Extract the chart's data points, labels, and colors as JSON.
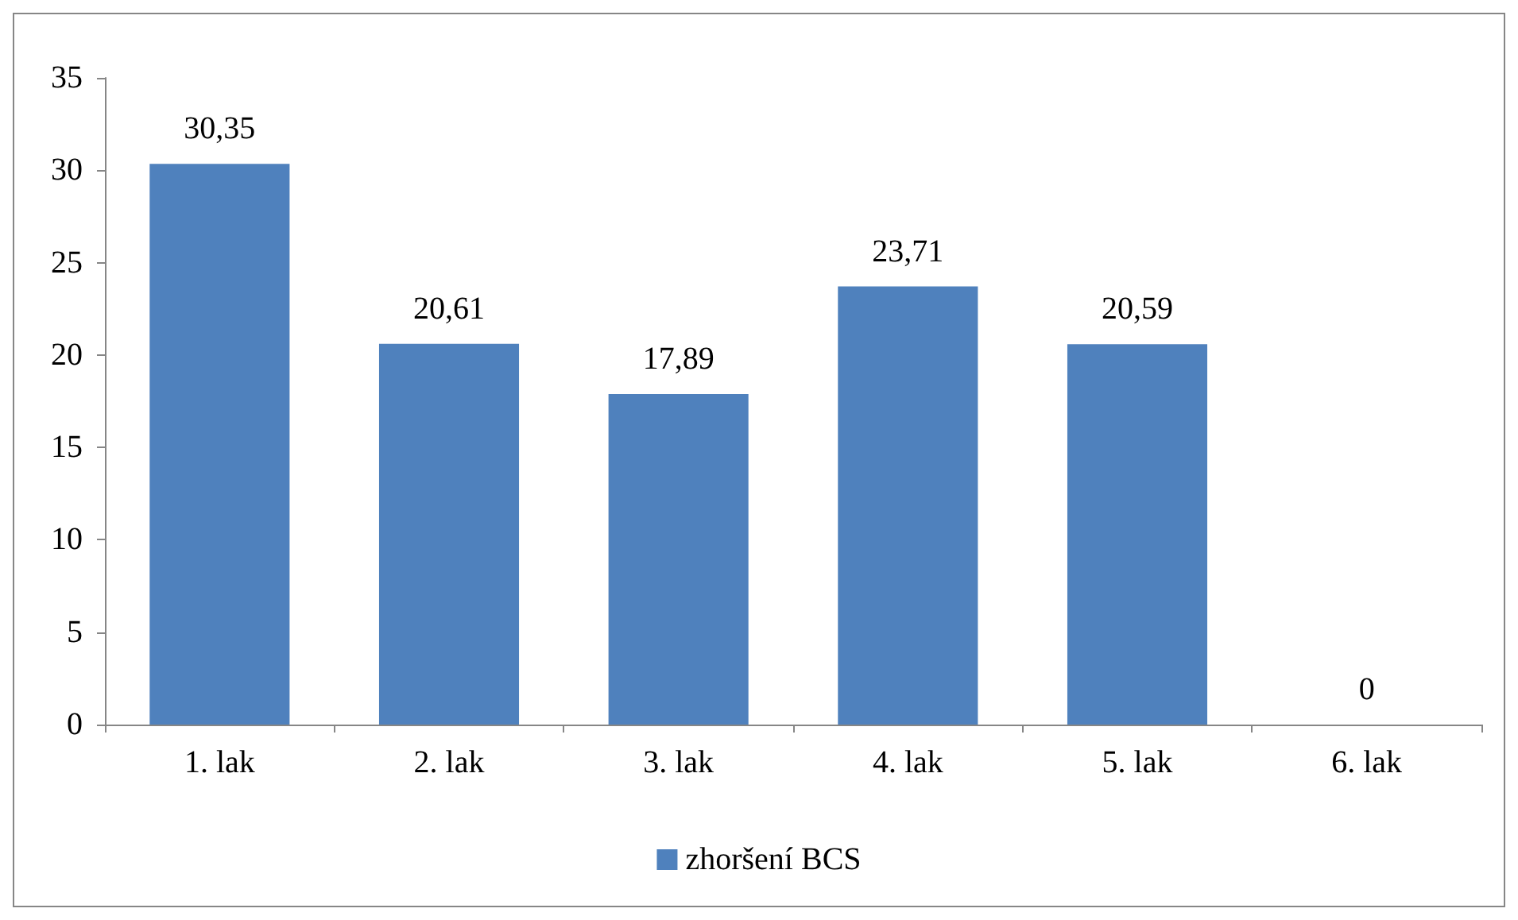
{
  "chart_data": {
    "type": "bar",
    "categories": [
      "1. lak",
      "2. lak",
      "3. lak",
      "4. lak",
      "5. lak",
      "6. lak"
    ],
    "series": [
      {
        "name": "zhoršení BCS",
        "color": "#4f81bd",
        "values": [
          30.35,
          20.61,
          17.89,
          23.71,
          20.59,
          0
        ]
      }
    ],
    "value_labels": [
      "30,35",
      "20,61",
      "17,89",
      "23,71",
      "20,59",
      "0"
    ],
    "ylim": [
      0,
      35
    ],
    "yticks": [
      0,
      5,
      10,
      15,
      20,
      25,
      30,
      35
    ],
    "grid": false,
    "legend": "bottom"
  }
}
